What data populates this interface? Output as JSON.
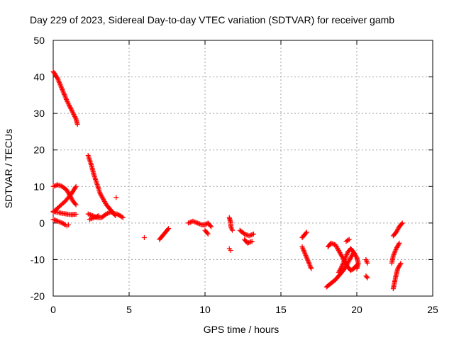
{
  "chart_data": {
    "type": "scatter",
    "title": "Day 229 of 2023, Sidereal Day-to-day VTEC variation (SDTVAR) for receiver gamb",
    "xlabel": "GPS time / hours",
    "ylabel": "SDTVAR / TECUs",
    "xlim": [
      0,
      25
    ],
    "ylim": [
      -20,
      50
    ],
    "xticks": [
      "0",
      "5",
      "10",
      "15",
      "20",
      "25"
    ],
    "yticks": [
      "-20",
      "-10",
      "0",
      "10",
      "20",
      "30",
      "40",
      "50"
    ],
    "grid": true,
    "marker": "+",
    "color": "#ff0000",
    "series": [
      {
        "segments": [
          [
            [
              0.0,
              41.5
            ],
            [
              0.3,
              39.5
            ],
            [
              0.6,
              36.5
            ],
            [
              0.9,
              33.5
            ],
            [
              1.2,
              31.0
            ],
            [
              1.5,
              28.5
            ],
            [
              1.6,
              27.0
            ]
          ],
          [
            [
              0.0,
              10.0
            ],
            [
              0.3,
              10.5
            ],
            [
              0.6,
              10.0
            ],
            [
              0.9,
              9.0
            ],
            [
              1.1,
              7.5
            ],
            [
              1.3,
              6.0
            ],
            [
              1.5,
              5.0
            ]
          ],
          [
            [
              0.0,
              3.0
            ],
            [
              0.4,
              4.5
            ],
            [
              0.8,
              6.0
            ],
            [
              1.2,
              8.0
            ],
            [
              1.5,
              10.0
            ]
          ],
          [
            [
              0.0,
              1.0
            ],
            [
              0.3,
              0.5
            ],
            [
              0.6,
              0.0
            ],
            [
              0.8,
              -0.5
            ]
          ],
          [
            [
              0.0,
              3.2
            ],
            [
              0.4,
              2.8
            ],
            [
              0.8,
              2.5
            ],
            [
              1.2,
              2.3
            ],
            [
              1.5,
              2.4
            ]
          ],
          [
            [
              2.3,
              18.5
            ],
            [
              2.5,
              16.0
            ],
            [
              2.7,
              13.0
            ],
            [
              2.9,
              10.5
            ],
            [
              3.1,
              8.0
            ],
            [
              3.3,
              6.5
            ],
            [
              3.5,
              5.0
            ],
            [
              3.7,
              4.0
            ],
            [
              3.9,
              3.0
            ],
            [
              4.1,
              2.0
            ]
          ],
          [
            [
              2.3,
              2.5
            ],
            [
              2.6,
              2.0
            ],
            [
              2.9,
              1.5
            ],
            [
              3.2,
              1.5
            ],
            [
              3.5,
              2.5
            ],
            [
              3.8,
              3.0
            ],
            [
              4.1,
              2.5
            ]
          ],
          [
            [
              2.4,
              1.0
            ],
            [
              2.7,
              1.5
            ],
            [
              3.0,
              2.0
            ]
          ],
          [
            [
              4.2,
              2.5
            ],
            [
              4.4,
              2.0
            ],
            [
              4.6,
              1.5
            ]
          ],
          [
            [
              7.0,
              -4.5
            ],
            [
              7.2,
              -3.5
            ],
            [
              7.4,
              -2.5
            ],
            [
              7.6,
              -1.5
            ]
          ],
          [
            [
              8.9,
              0.0
            ],
            [
              9.2,
              0.5
            ],
            [
              9.5,
              0.0
            ],
            [
              9.8,
              -0.5
            ],
            [
              10.0,
              -0.5
            ],
            [
              10.2,
              0.0
            ],
            [
              10.4,
              -1.0
            ]
          ],
          [
            [
              10.0,
              -2.0
            ],
            [
              10.2,
              -3.0
            ]
          ],
          [
            [
              11.6,
              1.5
            ],
            [
              11.7,
              0.0
            ],
            [
              11.7,
              -1.0
            ],
            [
              11.8,
              -2.0
            ]
          ],
          [
            [
              12.3,
              -2.0
            ],
            [
              12.6,
              -3.0
            ],
            [
              12.9,
              -3.5
            ],
            [
              13.2,
              -3.0
            ]
          ],
          [
            [
              12.6,
              -4.5
            ],
            [
              12.8,
              -5.5
            ],
            [
              13.1,
              -5.0
            ]
          ],
          [
            [
              16.4,
              -4.0
            ],
            [
              16.6,
              -3.0
            ],
            [
              16.7,
              -2.5
            ]
          ],
          [
            [
              16.4,
              -6.5
            ],
            [
              16.6,
              -8.5
            ],
            [
              16.8,
              -10.5
            ],
            [
              17.0,
              -12.5
            ]
          ],
          [
            [
              18.0,
              -17.5
            ],
            [
              18.3,
              -16.5
            ],
            [
              18.6,
              -15.5
            ],
            [
              18.9,
              -14.0
            ],
            [
              19.2,
              -12.5
            ],
            [
              19.4,
              -11.0
            ],
            [
              19.6,
              -9.5
            ],
            [
              19.8,
              -8.0
            ]
          ],
          [
            [
              18.1,
              -6.5
            ],
            [
              18.3,
              -5.5
            ],
            [
              18.6,
              -6.0
            ],
            [
              18.8,
              -7.5
            ],
            [
              19.0,
              -9.0
            ],
            [
              19.2,
              -10.5
            ],
            [
              19.4,
              -12.0
            ],
            [
              19.6,
              -13.0
            ],
            [
              19.8,
              -12.5
            ],
            [
              20.0,
              -11.5
            ]
          ],
          [
            [
              18.8,
              -13.5
            ],
            [
              19.0,
              -12.0
            ],
            [
              19.2,
              -10.0
            ],
            [
              19.4,
              -8.0
            ],
            [
              19.6,
              -7.0
            ],
            [
              19.8,
              -8.0
            ],
            [
              20.0,
              -9.5
            ],
            [
              20.1,
              -11.0
            ],
            [
              20.0,
              -12.5
            ]
          ],
          [
            [
              19.3,
              -5.0
            ],
            [
              19.5,
              -4.5
            ]
          ],
          [
            [
              20.6,
              -10.0
            ],
            [
              20.7,
              -11.0
            ]
          ],
          [
            [
              20.6,
              -14.5
            ],
            [
              20.7,
              -15.0
            ]
          ],
          [
            [
              22.4,
              -3.5
            ],
            [
              22.6,
              -2.5
            ],
            [
              22.8,
              -1.0
            ],
            [
              23.0,
              0.0
            ]
          ],
          [
            [
              22.3,
              -11.0
            ],
            [
              22.4,
              -9.0
            ],
            [
              22.6,
              -7.0
            ],
            [
              22.8,
              -5.5
            ]
          ],
          [
            [
              22.4,
              -18.0
            ],
            [
              22.5,
              -16.0
            ],
            [
              22.6,
              -14.0
            ],
            [
              22.7,
              -12.5
            ],
            [
              22.9,
              -11.0
            ]
          ]
        ],
        "points": [
          [
            0.9,
            -0.8
          ],
          [
            1.0,
            -0.5
          ],
          [
            4.15,
            7.0
          ],
          [
            6.0,
            -4.0
          ],
          [
            11.6,
            -7.0
          ],
          [
            11.7,
            -7.5
          ]
        ]
      }
    ]
  }
}
